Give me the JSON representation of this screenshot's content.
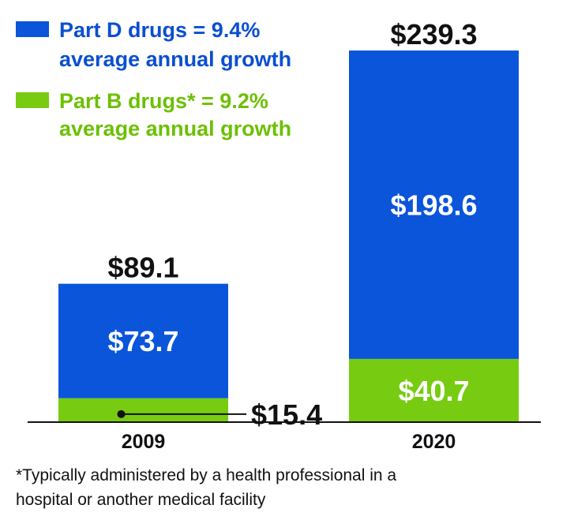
{
  "chart_data": {
    "type": "bar",
    "stacked": true,
    "categories": [
      "2009",
      "2020"
    ],
    "series": [
      {
        "name": "Part B drugs*",
        "legend_line1": "Part B drugs* = 9.2%",
        "legend_line2": "average annual growth",
        "values": [
          15.4,
          40.7
        ],
        "labels": [
          "$15.4",
          "$40.7"
        ],
        "color": "#77cc11"
      },
      {
        "name": "Part D drugs",
        "legend_line1": "Part D drugs = 9.4%",
        "legend_line2": "average annual growth",
        "values": [
          73.7,
          198.6
        ],
        "labels": [
          "$73.7",
          "$198.6"
        ],
        "color": "#0a55d9"
      }
    ],
    "totals": [
      89.1,
      239.3
    ],
    "total_labels": [
      "$89.1",
      "$239.3"
    ],
    "ylim": [
      0,
      239.3
    ],
    "grid": false,
    "legend_placement": "top-left",
    "footnote_line1": "*Typically administered by a health professional in a",
    "footnote_line2": "hospital or another medical facility"
  }
}
